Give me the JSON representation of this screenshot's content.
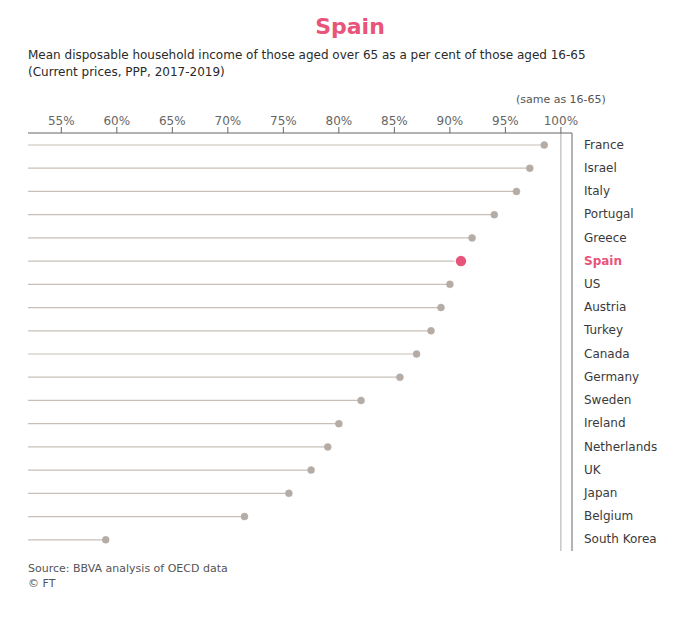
{
  "chart_data": {
    "type": "lollipop",
    "title": "Spain",
    "subtitle": [
      "Mean disposable household income of those aged over 65 as a per cent of those aged 16-65",
      "(Current prices, PPP, 2017-2019)"
    ],
    "annotations": [
      {
        "text": "(same as 16-65)",
        "x": 100
      }
    ],
    "source": [
      "Source: BBVA analysis of OECD data",
      "© FT"
    ],
    "orientation": "horizontal",
    "categories": [
      "France",
      "Israel",
      "Italy",
      "Portugal",
      "Greece",
      "Spain",
      "US",
      "Austria",
      "Turkey",
      "Canada",
      "Germany",
      "Sweden",
      "Ireland",
      "Netherlands",
      "UK",
      "Japan",
      "Belgium",
      "South Korea"
    ],
    "values": [
      98.5,
      97.2,
      96.0,
      94.0,
      92.0,
      91.0,
      90.0,
      89.2,
      88.3,
      87.0,
      85.5,
      82.0,
      80.0,
      79.0,
      77.5,
      75.5,
      71.5,
      59.0
    ],
    "color": "#c8bfb8",
    "colors": [
      "#b5aca6",
      "#b5aca6",
      "#b5aca6",
      "#b5aca6",
      "#b5aca6",
      "#e8547a",
      "#b5aca6",
      "#b5aca6",
      "#b5aca6",
      "#b5aca6",
      "#b5aca6",
      "#b5aca6",
      "#b5aca6",
      "#b5aca6",
      "#b5aca6",
      "#b5aca6",
      "#b5aca6",
      "#b5aca6"
    ],
    "xlim": [
      52,
      101
    ],
    "xticks": [
      {
        "value": 55,
        "label": "55%"
      },
      {
        "value": 60,
        "label": "60%"
      },
      {
        "value": 65,
        "label": "65%"
      },
      {
        "value": 70,
        "label": "70%"
      },
      {
        "value": 75,
        "label": "75%"
      },
      {
        "value": 80,
        "label": "80%"
      },
      {
        "value": 85,
        "label": "85%"
      },
      {
        "value": 90,
        "label": "90%"
      },
      {
        "value": 95,
        "label": "95%"
      },
      {
        "value": 100,
        "label": "100%"
      }
    ],
    "grid": false
  }
}
